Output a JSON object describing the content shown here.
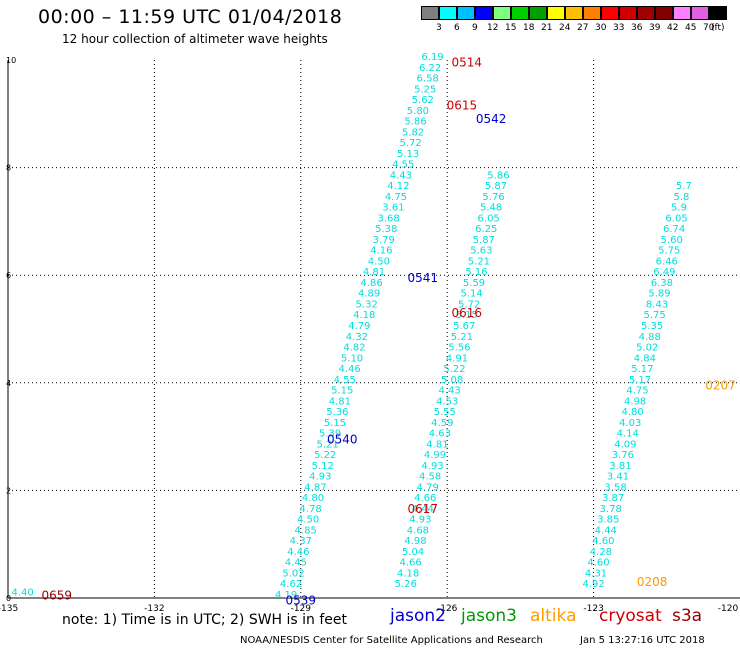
{
  "header": {
    "title": "00:00 – 11:59 UTC 01/04/2018",
    "subtitle": "12 hour collection of altimeter wave heights"
  },
  "colorbar": {
    "unit": "(ft)",
    "colors": [
      "#808080",
      "#00ffff",
      "#00bfff",
      "#0000ff",
      "#7fff7f",
      "#00d000",
      "#00a000",
      "#ffff00",
      "#ffbf00",
      "#ff8000",
      "#ff0000",
      "#d00000",
      "#a00000",
      "#800000",
      "#ff80ff",
      "#e060e0",
      "#000000"
    ],
    "labels": [
      "3",
      "6",
      "9",
      "12",
      "15",
      "18",
      "21",
      "24",
      "27",
      "30",
      "33",
      "36",
      "39",
      "42",
      "45",
      "70"
    ]
  },
  "footer": {
    "note": "note: 1) Time is in UTC; 2) SWH is in feet",
    "legend": [
      {
        "name": "jason2",
        "color": "#0000cc"
      },
      {
        "name": "jason3",
        "color": "#009900"
      },
      {
        "name": "altika",
        "color": "#ff9900"
      },
      {
        "name": "cryosat",
        "color": "#cc0000"
      },
      {
        "name": "s3a",
        "color": "#990000"
      }
    ],
    "credit": "NOAA/NESDIS Center for Satellite Applications and Research",
    "timestamp": "Jan  5 13:27:16 UTC 2018"
  },
  "chart_data": {
    "type": "scatter",
    "xlim": [
      -135,
      -120
    ],
    "ylim": [
      0,
      10
    ],
    "xticks": [
      -135,
      -132,
      -129,
      -126,
      -123,
      -120
    ],
    "xtick_labels": [
      "-135",
      "-132",
      "-129",
      "-126",
      "-123",
      "-120"
    ],
    "yticks": [
      0,
      2,
      4,
      6,
      8,
      10
    ],
    "ytick_labels": [
      "0",
      "2",
      "4",
      "6",
      "8",
      "10"
    ],
    "grid": true,
    "point_color": "#00dddd",
    "tracks": [
      {
        "name": "track-a",
        "points": [
          [
            -129.3,
            0.0,
            "4.19"
          ],
          [
            -129.2,
            0.2,
            "4.62"
          ],
          [
            -129.15,
            0.4,
            "5.02"
          ],
          [
            -129.1,
            0.6,
            "4.45"
          ],
          [
            -129.05,
            0.8,
            "4.46"
          ],
          [
            -129.0,
            1.0,
            "4.37"
          ],
          [
            -128.9,
            1.2,
            "4.85"
          ],
          [
            -128.85,
            1.4,
            "4.50"
          ],
          [
            -128.8,
            1.6,
            "4.78"
          ],
          [
            -128.75,
            1.8,
            "4.80"
          ],
          [
            -128.7,
            2.0,
            "4.87"
          ],
          [
            -128.6,
            2.2,
            "4.93"
          ],
          [
            -128.55,
            2.4,
            "5.12"
          ],
          [
            -128.5,
            2.6,
            "5.22"
          ],
          [
            -128.45,
            2.8,
            "5.21"
          ],
          [
            -128.4,
            3.0,
            "5.39"
          ],
          [
            -128.3,
            3.2,
            "5.15"
          ],
          [
            -128.25,
            3.4,
            "5.36"
          ],
          [
            -128.2,
            3.6,
            "4.81"
          ],
          [
            -128.15,
            3.8,
            "5.15"
          ],
          [
            -128.1,
            4.0,
            "4.55"
          ],
          [
            -128.0,
            4.2,
            "4.46"
          ],
          [
            -127.95,
            4.4,
            "5.10"
          ],
          [
            -127.9,
            4.6,
            "4.82"
          ],
          [
            -127.85,
            4.8,
            "4.32"
          ],
          [
            -127.8,
            5.0,
            "4.79"
          ],
          [
            -127.7,
            5.2,
            "4.18"
          ],
          [
            -127.65,
            5.4,
            "5.32"
          ],
          [
            -127.6,
            5.6,
            "4.89"
          ],
          [
            -127.55,
            5.8,
            "4.86"
          ],
          [
            -127.5,
            6.0,
            "4.81"
          ],
          [
            -127.4,
            6.2,
            "4.50"
          ],
          [
            -127.35,
            6.4,
            "4.16"
          ],
          [
            -127.3,
            6.6,
            "3.79"
          ],
          [
            -127.25,
            6.8,
            "5.38"
          ],
          [
            -127.2,
            7.0,
            "3.68"
          ],
          [
            -127.1,
            7.2,
            "3.61"
          ],
          [
            -127.05,
            7.4,
            "4.75"
          ],
          [
            -127.0,
            7.6,
            "4.12"
          ],
          [
            -126.95,
            7.8,
            "4.43"
          ],
          [
            -126.9,
            8.0,
            "4.55"
          ],
          [
            -126.8,
            8.2,
            "5.13"
          ],
          [
            -126.75,
            8.4,
            "5.72"
          ],
          [
            -126.7,
            8.6,
            "5.82"
          ],
          [
            -126.65,
            8.8,
            "5.86"
          ],
          [
            -126.6,
            9.0,
            "5.80"
          ],
          [
            -126.5,
            9.2,
            "5.62"
          ],
          [
            -126.45,
            9.4,
            "5.25"
          ],
          [
            -126.4,
            9.6,
            "6.58"
          ],
          [
            -126.35,
            9.8,
            "6.22"
          ],
          [
            -126.3,
            10.0,
            "6.19"
          ]
        ]
      },
      {
        "name": "track-b",
        "points": [
          [
            -126.85,
            0.2,
            "5.26"
          ],
          [
            -126.8,
            0.4,
            "4.18"
          ],
          [
            -126.75,
            0.6,
            "4.66"
          ],
          [
            -126.7,
            0.8,
            "5.04"
          ],
          [
            -126.65,
            1.0,
            "4.98"
          ],
          [
            -126.6,
            1.2,
            "4.68"
          ],
          [
            -126.55,
            1.4,
            "4.93"
          ],
          [
            -126.5,
            1.6,
            "4.44"
          ],
          [
            -126.45,
            1.8,
            "4.66"
          ],
          [
            -126.4,
            2.0,
            "4.79"
          ],
          [
            -126.35,
            2.2,
            "4.58"
          ],
          [
            -126.3,
            2.4,
            "4.93"
          ],
          [
            -126.25,
            2.6,
            "4.99"
          ],
          [
            -126.2,
            2.8,
            "4.81"
          ],
          [
            -126.15,
            3.0,
            "4.63"
          ],
          [
            -126.1,
            3.2,
            "4.59"
          ],
          [
            -126.05,
            3.4,
            "5.55"
          ],
          [
            -126.0,
            3.6,
            "4.53"
          ],
          [
            -125.95,
            3.8,
            "4.43"
          ],
          [
            -125.9,
            4.0,
            "5.08"
          ],
          [
            -125.85,
            4.2,
            "5.22"
          ],
          [
            -125.8,
            4.4,
            "4.91"
          ],
          [
            -125.75,
            4.6,
            "5.56"
          ],
          [
            -125.7,
            4.8,
            "5.21"
          ],
          [
            -125.65,
            5.0,
            "5.67"
          ],
          [
            -125.6,
            5.2,
            "5.15"
          ],
          [
            -125.55,
            5.4,
            "5.72"
          ],
          [
            -125.5,
            5.6,
            "5.14"
          ],
          [
            -125.45,
            5.8,
            "5.59"
          ],
          [
            -125.4,
            6.0,
            "5.16"
          ],
          [
            -125.35,
            6.2,
            "5.21"
          ],
          [
            -125.3,
            6.4,
            "5.63"
          ],
          [
            -125.25,
            6.6,
            "5.87"
          ],
          [
            -125.2,
            6.8,
            "6.25"
          ],
          [
            -125.15,
            7.0,
            "6.05"
          ],
          [
            -125.1,
            7.2,
            "5.48"
          ],
          [
            -125.05,
            7.4,
            "5.76"
          ],
          [
            -125.0,
            7.6,
            "5.87"
          ],
          [
            -124.95,
            7.8,
            "5.86"
          ]
        ]
      },
      {
        "name": "track-c",
        "points": [
          [
            -123.0,
            0.2,
            "4.92"
          ],
          [
            -122.95,
            0.4,
            "4.31"
          ],
          [
            -122.9,
            0.6,
            "4.60"
          ],
          [
            -122.85,
            0.8,
            "4.28"
          ],
          [
            -122.8,
            1.0,
            "4.60"
          ],
          [
            -122.75,
            1.2,
            "4.44"
          ],
          [
            -122.7,
            1.4,
            "3.85"
          ],
          [
            -122.65,
            1.6,
            "3.78"
          ],
          [
            -122.6,
            1.8,
            "3.87"
          ],
          [
            -122.55,
            2.0,
            "3.58"
          ],
          [
            -122.5,
            2.2,
            "3.41"
          ],
          [
            -122.45,
            2.4,
            "3.81"
          ],
          [
            -122.4,
            2.6,
            "3.76"
          ],
          [
            -122.35,
            2.8,
            "4.09"
          ],
          [
            -122.3,
            3.0,
            "4.14"
          ],
          [
            -122.25,
            3.2,
            "4.03"
          ],
          [
            -122.2,
            3.4,
            "4.80"
          ],
          [
            -122.15,
            3.6,
            "4.98"
          ],
          [
            -122.1,
            3.8,
            "4.75"
          ],
          [
            -122.05,
            4.0,
            "5.17"
          ],
          [
            -122.0,
            4.2,
            "5.17"
          ],
          [
            -121.95,
            4.4,
            "4.84"
          ],
          [
            -121.9,
            4.6,
            "5.02"
          ],
          [
            -121.85,
            4.8,
            "4.88"
          ],
          [
            -121.8,
            5.0,
            "5.35"
          ],
          [
            -121.75,
            5.2,
            "5.75"
          ],
          [
            -121.7,
            5.4,
            "8.43"
          ],
          [
            -121.65,
            5.6,
            "5.89"
          ],
          [
            -121.6,
            5.8,
            "6.38"
          ],
          [
            -121.55,
            6.0,
            "6.49"
          ],
          [
            -121.5,
            6.2,
            "6.46"
          ],
          [
            -121.45,
            6.4,
            "5.75"
          ],
          [
            -121.4,
            6.6,
            "5.60"
          ],
          [
            -121.35,
            6.8,
            "6.74"
          ],
          [
            -121.3,
            7.0,
            "6.05"
          ],
          [
            -121.25,
            7.2,
            "5.9"
          ],
          [
            -121.2,
            7.4,
            "5.8"
          ],
          [
            -121.15,
            7.6,
            "5.7"
          ]
        ]
      },
      {
        "name": "track-d",
        "points": [
          [
            -134.7,
            0.05,
            "4.40"
          ]
        ]
      }
    ],
    "time_labels": [
      {
        "text": "0514",
        "x": -125.6,
        "y": 9.95,
        "color": "#cc0000"
      },
      {
        "text": "0615",
        "x": -125.7,
        "y": 9.15,
        "color": "#cc0000"
      },
      {
        "text": "0542",
        "x": -125.1,
        "y": 8.9,
        "color": "#0000cc"
      },
      {
        "text": "0541",
        "x": -126.5,
        "y": 5.95,
        "color": "#0000cc"
      },
      {
        "text": "0616",
        "x": -125.6,
        "y": 5.3,
        "color": "#cc0000"
      },
      {
        "text": "0540",
        "x": -128.15,
        "y": 2.95,
        "color": "#0000cc"
      },
      {
        "text": "0617",
        "x": -126.5,
        "y": 1.65,
        "color": "#cc0000"
      },
      {
        "text": "0539",
        "x": -129.0,
        "y": -0.05,
        "color": "#0000cc"
      },
      {
        "text": "0659",
        "x": -134.0,
        "y": 0.05,
        "color": "#990000"
      },
      {
        "text": "0208",
        "x": -121.8,
        "y": 0.3,
        "color": "#ff9900"
      },
      {
        "text": "0207",
        "x": -120.4,
        "y": 3.95,
        "color": "#ff9900"
      }
    ]
  }
}
